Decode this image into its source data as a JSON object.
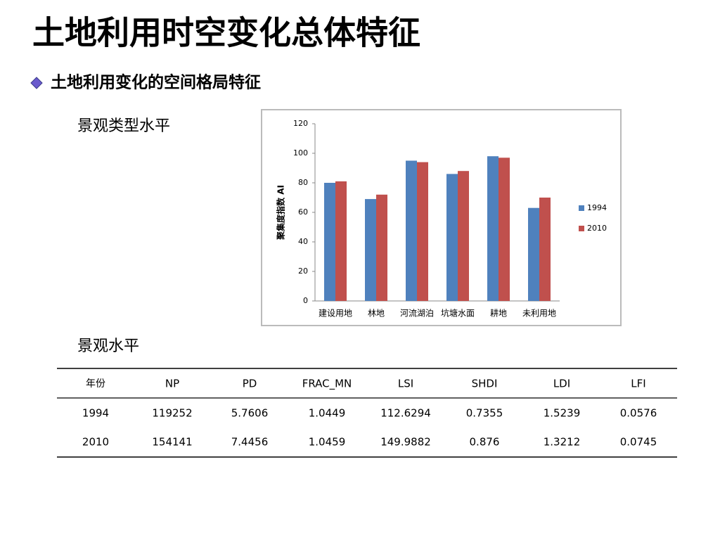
{
  "title": "土地利用时空变化总体特征",
  "subtitle": "土地利用变化的空间格局特征",
  "section_1": "景观类型水平",
  "section_2": "景观水平",
  "chart_data": {
    "type": "bar",
    "y_label": "聚集度指数 AI",
    "categories": [
      "建设用地",
      "林地",
      "河流湖泊",
      "坑塘水面",
      "耕地",
      "未利用地"
    ],
    "series": [
      {
        "name": "1994",
        "color": "#4f81bd",
        "values": [
          80,
          69,
          95,
          86,
          98,
          63
        ]
      },
      {
        "name": "2010",
        "color": "#c0504d",
        "values": [
          81,
          72,
          94,
          88,
          97,
          70
        ]
      }
    ],
    "ylim": [
      0,
      120
    ],
    "yticks": [
      0,
      20,
      40,
      60,
      80,
      100,
      120
    ],
    "grid": false,
    "legend": "right"
  },
  "table": {
    "header": [
      "年份",
      "NP",
      "PD",
      "FRAC_MN",
      "LSI",
      "SHDI",
      "LDI",
      "LFI"
    ],
    "rows": [
      [
        1994,
        119252,
        5.7606,
        1.0449,
        112.6294,
        0.7355,
        1.5239,
        0.0576
      ],
      [
        2010,
        154141,
        7.4456,
        1.0459,
        149.9882,
        0.876,
        1.3212,
        0.0745
      ]
    ]
  }
}
